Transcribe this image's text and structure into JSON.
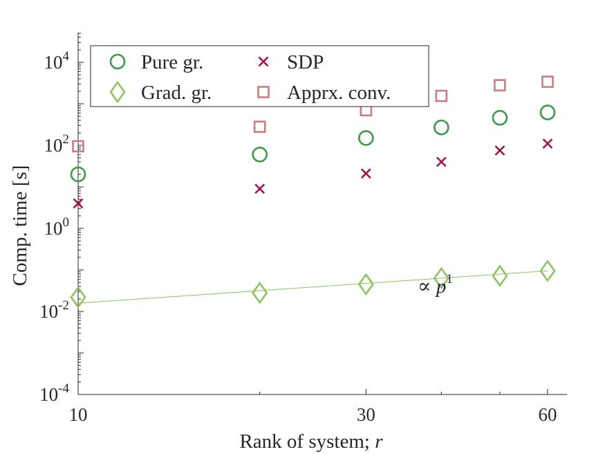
{
  "chart_data": {
    "type": "scatter",
    "title": "",
    "xlabel": "Rank of system; ",
    "xlabel_var": "r",
    "ylabel": "Comp. time [s]",
    "x_scale": "log",
    "y_scale": "log",
    "xlim": [
      10,
      60
    ],
    "ylim": [
      0.0001,
      50000
    ],
    "x_ticks": [
      10,
      30,
      60
    ],
    "x_tick_labels": [
      "10",
      "30",
      "60"
    ],
    "y_ticks": [
      0.0001,
      0.01,
      1,
      100,
      10000
    ],
    "y_tick_labels": [
      {
        "base": "10",
        "exp": "-4"
      },
      {
        "base": "10",
        "exp": "-2"
      },
      {
        "base": "10",
        "exp": "0"
      },
      {
        "base": "10",
        "exp": "2"
      },
      {
        "base": "10",
        "exp": "4"
      }
    ],
    "grid": false,
    "legend_position": "top-left",
    "series": [
      {
        "name": "Pure gr.",
        "marker": "circle",
        "color": "#3a9a45",
        "x": [
          10,
          20,
          30,
          40,
          50,
          60
        ],
        "y": [
          20,
          60,
          150,
          270,
          460,
          620
        ]
      },
      {
        "name": "Grad. gr.",
        "marker": "diamond",
        "color": "#8cc460",
        "x": [
          10,
          20,
          30,
          40,
          50,
          60
        ],
        "y": [
          0.022,
          0.028,
          0.045,
          0.063,
          0.072,
          0.095
        ]
      },
      {
        "name": "SDP",
        "marker": "x",
        "color": "#a3124e",
        "x": [
          10,
          20,
          30,
          40,
          50,
          60
        ],
        "y": [
          4,
          9,
          21,
          40,
          75,
          110
        ]
      },
      {
        "name": "Apprx. conv.",
        "marker": "square",
        "color": "#cc7c80",
        "x": [
          10,
          20,
          30,
          40,
          50,
          60
        ],
        "y": [
          95,
          280,
          700,
          1550,
          2800,
          3400
        ]
      }
    ],
    "fit_line": {
      "color": "#8cc460",
      "x": [
        10,
        60
      ],
      "y": [
        0.0158,
        0.095
      ],
      "label_prefix": "∝ ",
      "label_var": "p",
      "label_exp": "1"
    }
  }
}
